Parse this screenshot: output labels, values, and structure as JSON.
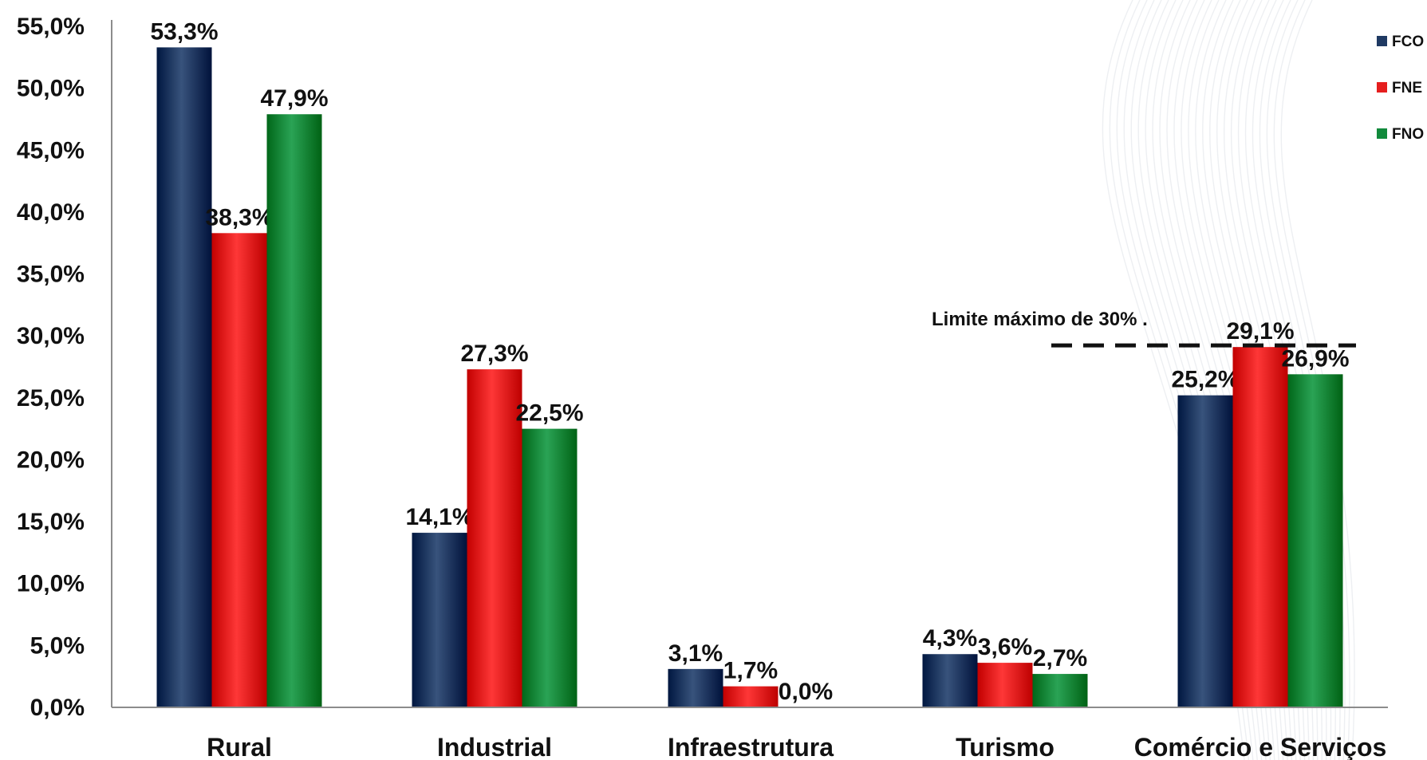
{
  "chart_data": {
    "type": "bar",
    "categories": [
      "Rural",
      "Industrial",
      "Infraestrutura",
      "Turismo",
      "Comércio e Serviços"
    ],
    "series": [
      {
        "name": "FCO",
        "color": "#1f3a63",
        "values": [
          53.3,
          14.1,
          3.1,
          4.3,
          25.2
        ],
        "labels": [
          "53,3%",
          "14,1%",
          "3,1%",
          "4,3%",
          "25,2%"
        ]
      },
      {
        "name": "FNE",
        "color": "#e51e1e",
        "values": [
          38.3,
          27.3,
          1.7,
          3.6,
          29.1
        ],
        "labels": [
          "38,3%",
          "27,3%",
          "1,7%",
          "3,6%",
          "29,1%"
        ]
      },
      {
        "name": "FNO",
        "color": "#118a3c",
        "values": [
          47.9,
          22.5,
          0.0,
          2.7,
          26.9
        ],
        "labels": [
          "47,9%",
          "22,5%",
          "0,0%",
          "2,7%",
          "26,9%"
        ]
      }
    ],
    "ylim": [
      0,
      55
    ],
    "yticks": [
      0,
      5,
      10,
      15,
      20,
      25,
      30,
      35,
      40,
      45,
      50,
      55
    ],
    "ytick_labels": [
      "0,0%",
      "5,0%",
      "10,0%",
      "15,0%",
      "20,0%",
      "25,0%",
      "30,0%",
      "35,0%",
      "40,0%",
      "45,0%",
      "50,0%",
      "55,0%"
    ],
    "grid": false,
    "legend_position": "top-right",
    "annotation": {
      "text": "Limite máximo de 30% .",
      "value": 30,
      "category": "Comércio e Serviços"
    }
  }
}
